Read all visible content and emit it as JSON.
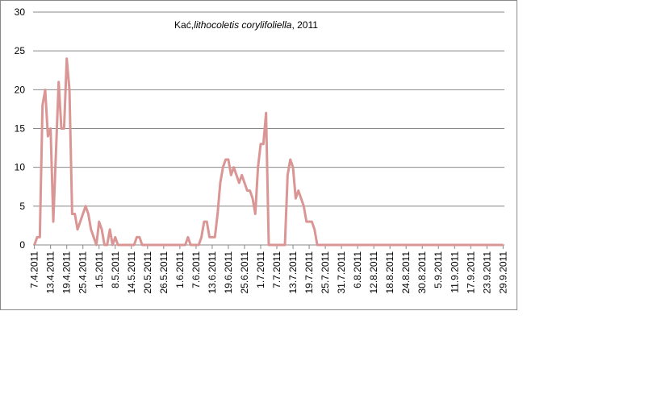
{
  "chart_data": {
    "type": "line",
    "title": [
      "Kać,",
      "lithocoletis corylifoliella",
      ", 2011"
    ],
    "categories": [
      "7.4.2011",
      null,
      null,
      null,
      null,
      null,
      "13.4.2011",
      null,
      null,
      null,
      null,
      null,
      "19.4.2011",
      null,
      null,
      null,
      null,
      null,
      "25.4.2011",
      null,
      null,
      null,
      null,
      null,
      "1.5.2011",
      null,
      null,
      null,
      null,
      null,
      "8.5.2011",
      null,
      null,
      null,
      null,
      null,
      "14.5.2011",
      null,
      null,
      null,
      null,
      null,
      "20.5.2011",
      null,
      null,
      null,
      null,
      null,
      "26.5.2011",
      null,
      null,
      null,
      null,
      null,
      "1.6.2011",
      null,
      null,
      null,
      null,
      null,
      "7.6.2011",
      null,
      null,
      null,
      null,
      null,
      "13.6.2011",
      null,
      null,
      null,
      null,
      null,
      "19.6.2011",
      null,
      null,
      null,
      null,
      null,
      "25.6.2011",
      null,
      null,
      null,
      null,
      null,
      "1.7.2011",
      null,
      null,
      null,
      null,
      null,
      "7.7.2011",
      null,
      null,
      null,
      null,
      null,
      "13.7.2011",
      null,
      null,
      null,
      null,
      null,
      "19.7.2011",
      null,
      null,
      null,
      null,
      null,
      "25.7.2011",
      null,
      null,
      null,
      null,
      null,
      "31.7.2011",
      null,
      null,
      null,
      null,
      null,
      "6.8.2011",
      null,
      null,
      null,
      null,
      null,
      "12.8.2011",
      null,
      null,
      null,
      null,
      null,
      "18.8.2011",
      null,
      null,
      null,
      null,
      null,
      "24.8.2011",
      null,
      null,
      null,
      null,
      null,
      "30.8.2011",
      null,
      null,
      null,
      null,
      null,
      "5.9.2011",
      null,
      null,
      null,
      null,
      null,
      "11.9.2011",
      null,
      null,
      null,
      null,
      null,
      "17.9.2011",
      null,
      null,
      null,
      null,
      null,
      "23.9.2011",
      null,
      null,
      null,
      null,
      null,
      "29.9.2011"
    ],
    "values": [
      0,
      1,
      1,
      18,
      20,
      14,
      15,
      3,
      12,
      21,
      15,
      15,
      24,
      20,
      4,
      4,
      2,
      3,
      4,
      5,
      4,
      2,
      1,
      0,
      3,
      2,
      0,
      0,
      2,
      0,
      1,
      0,
      0,
      0,
      0,
      0,
      0,
      0,
      1,
      1,
      0,
      0,
      0,
      0,
      0,
      0,
      0,
      0,
      0,
      0,
      0,
      0,
      0,
      0,
      0,
      0,
      0,
      1,
      0,
      0,
      0,
      0,
      1,
      3,
      3,
      1,
      1,
      1,
      4,
      8,
      10,
      11,
      11,
      9,
      10,
      9,
      8,
      9,
      8,
      7,
      7,
      6,
      4,
      10,
      13,
      13,
      17,
      0,
      0,
      0,
      0,
      0,
      0,
      0,
      9,
      11,
      10,
      6,
      7,
      6,
      5,
      3,
      3,
      3,
      2,
      0,
      0,
      0,
      0,
      0,
      0,
      0,
      0,
      0,
      0,
      0,
      0,
      0,
      0,
      0,
      0,
      0,
      0,
      0,
      0,
      0,
      0,
      0,
      0,
      0,
      0,
      0,
      0,
      0,
      0,
      0,
      0,
      0,
      0,
      0,
      0,
      0,
      0,
      0,
      0,
      0,
      0,
      0,
      0,
      0,
      0,
      0,
      0,
      0,
      0,
      0,
      0,
      0,
      0,
      0,
      0,
      0,
      0,
      0,
      0,
      0,
      0,
      0,
      0,
      0,
      0,
      0,
      0,
      0,
      0
    ],
    "color": "#d99694",
    "ylim": [
      0,
      30
    ],
    "yticks": [
      0,
      5,
      10,
      15,
      20,
      25,
      30
    ],
    "grid": true
  }
}
